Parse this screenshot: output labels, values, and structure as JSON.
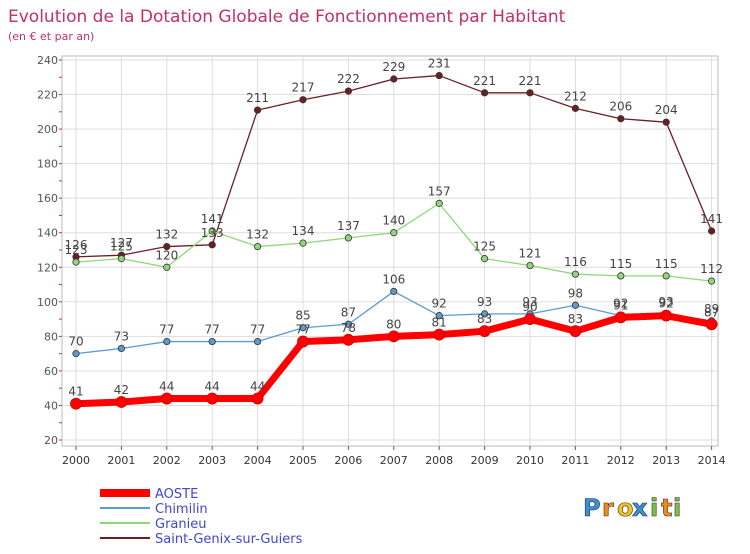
{
  "chart_data": {
    "type": "line",
    "title": "Evolution de la Dotation Globale de Fonctionnement par Habitant",
    "subtitle": "(en € et par an)",
    "xlabel": "",
    "ylabel": "",
    "ylim": [
      20,
      240
    ],
    "yticks": [
      20,
      40,
      60,
      80,
      100,
      120,
      140,
      160,
      180,
      200,
      220,
      240
    ],
    "grid": true,
    "legend_position": "bottom-left",
    "categories": [
      "2000",
      "2001",
      "2002",
      "2003",
      "2004",
      "2005",
      "2006",
      "2007",
      "2008",
      "2009",
      "2010",
      "2011",
      "2012",
      "2013",
      "2014"
    ],
    "series": [
      {
        "name": "Saint-Genix-sur-Guiers",
        "color": "#6b1f24",
        "values": [
          126,
          127,
          132,
          133,
          211,
          217,
          222,
          229,
          231,
          221,
          221,
          212,
          206,
          204,
          141
        ],
        "labels": [
          "126",
          "127",
          "132",
          "133",
          "211",
          "217",
          "222",
          "229",
          "231",
          "221",
          "221",
          "212",
          "206",
          "204",
          "141"
        ]
      },
      {
        "name": "Granieu",
        "color": "#8fd77a",
        "values": [
          123,
          125,
          120,
          141,
          132,
          134,
          137,
          140,
          157,
          125,
          121,
          116,
          115,
          115,
          112
        ],
        "labels": [
          "123",
          "125",
          "120",
          "141",
          "132",
          "134",
          "137",
          "140",
          "157",
          "125",
          "121",
          "116",
          "115",
          "115",
          "112"
        ]
      },
      {
        "name": "Chimilin",
        "color": "#5b9bd0",
        "values": [
          70,
          73,
          77,
          77,
          77,
          85,
          87,
          106,
          92,
          93,
          93,
          98,
          92,
          93,
          89
        ],
        "labels": [
          "70",
          "73",
          "77",
          "77",
          "77",
          "85",
          "87",
          "106",
          "92",
          "93",
          "93",
          "98",
          "92",
          "93",
          "89"
        ]
      },
      {
        "name": "AOSTE",
        "color": "#ff0000",
        "values": [
          41,
          42,
          44,
          44,
          44,
          77,
          78,
          80,
          81,
          83,
          90,
          83,
          91,
          92,
          87
        ],
        "labels": [
          "41",
          "42",
          "44",
          "44",
          "44",
          "77",
          "78",
          "80",
          "81",
          "83",
          "90",
          "83",
          "91",
          "92",
          "87"
        ]
      }
    ]
  },
  "legend": {
    "items": [
      "AOSTE",
      "Chimilin",
      "Granieu",
      "Saint-Genix-sur-Guiers"
    ]
  },
  "brand": {
    "logo_text": "Proxiti",
    "letters": [
      "P",
      "r",
      "o",
      "x",
      "i",
      "t",
      "i"
    ],
    "letter_colors": [
      "#3a8fd6",
      "#f08a1c",
      "#f0c020",
      "#3a8fd6",
      "#7cc242",
      "#f08a1c",
      "#7cc242"
    ]
  },
  "colors": {
    "title": "#c0306a",
    "axis": "#555555",
    "grid": "#dddddd"
  }
}
